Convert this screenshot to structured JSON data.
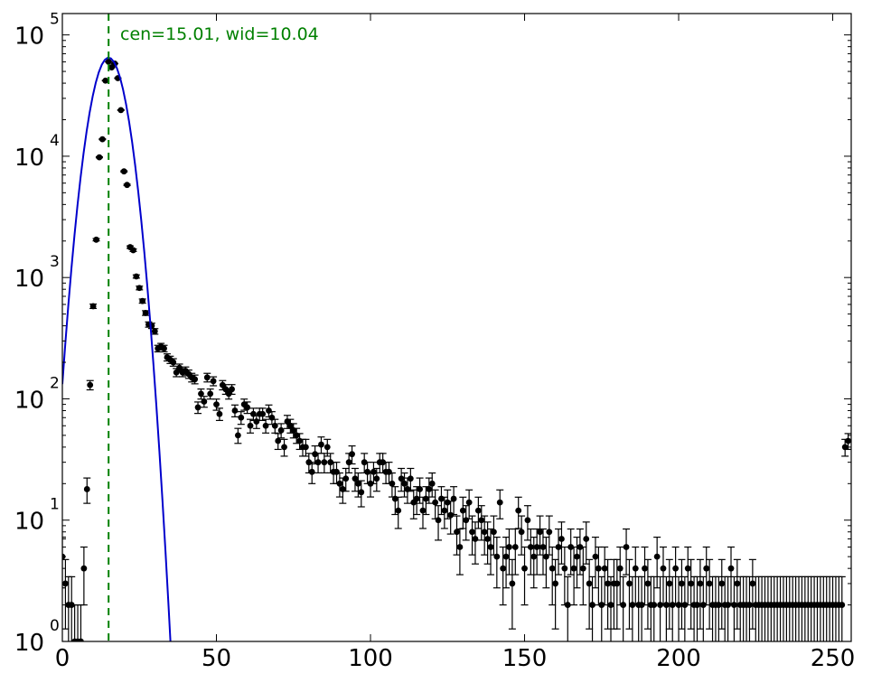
{
  "chart_data": {
    "type": "scatter",
    "title": "",
    "xlabel": "",
    "ylabel": "",
    "xlim": [
      0,
      256
    ],
    "ylim": [
      1,
      150000
    ],
    "yscale": "log",
    "grid": false,
    "x_ticks": [
      0,
      50,
      100,
      150,
      200,
      250
    ],
    "x_tick_labels": [
      "0",
      "50",
      "100",
      "150",
      "200",
      "250"
    ],
    "y_ticks": [
      {
        "value": 1,
        "base": "10",
        "exp": "0"
      },
      {
        "value": 10,
        "base": "10",
        "exp": "1"
      },
      {
        "value": 100,
        "base": "10",
        "exp": "2"
      },
      {
        "value": 1000,
        "base": "10",
        "exp": "3"
      },
      {
        "value": 10000,
        "base": "10",
        "exp": "4"
      },
      {
        "value": 100000,
        "base": "10",
        "exp": "5"
      }
    ],
    "annotation": "cen=15.01, wid=10.04",
    "marker": {
      "x": 15.01,
      "color": "#008000",
      "style": "dashed"
    },
    "colors": {
      "data": "#000000",
      "fit": "#0000cc",
      "marker": "#008000"
    },
    "fit": {
      "center": 15.01,
      "width": 10.04,
      "amplitude": 65000
    },
    "series": [
      {
        "points": [
          [
            0,
            5
          ],
          [
            1,
            3
          ],
          [
            2,
            2
          ],
          [
            3,
            2
          ],
          [
            4,
            1
          ],
          [
            5,
            1
          ],
          [
            6,
            1
          ],
          [
            7,
            4
          ],
          [
            8,
            18
          ],
          [
            9,
            130
          ],
          [
            10,
            580
          ],
          [
            11,
            2050
          ],
          [
            12,
            9800
          ],
          [
            13,
            13800
          ],
          [
            14,
            42000
          ],
          [
            15,
            60000
          ],
          [
            16,
            54000
          ],
          [
            17,
            58000
          ],
          [
            18,
            44000
          ],
          [
            19,
            24000
          ],
          [
            20,
            7500
          ],
          [
            21,
            5800
          ],
          [
            22,
            1780
          ],
          [
            23,
            1680
          ],
          [
            24,
            1020
          ],
          [
            25,
            820
          ],
          [
            26,
            640
          ],
          [
            27,
            510
          ],
          [
            28,
            410
          ],
          [
            29,
            400
          ],
          [
            30,
            360
          ],
          [
            31,
            260
          ],
          [
            32,
            270
          ],
          [
            33,
            260
          ],
          [
            34,
            220
          ],
          [
            35,
            210
          ],
          [
            36,
            200
          ],
          [
            37,
            165
          ],
          [
            38,
            180
          ],
          [
            39,
            165
          ],
          [
            40,
            170
          ],
          [
            41,
            160
          ],
          [
            42,
            150
          ],
          [
            43,
            145
          ],
          [
            44,
            85
          ],
          [
            45,
            110
          ],
          [
            46,
            95
          ],
          [
            47,
            150
          ],
          [
            48,
            110
          ],
          [
            49,
            140
          ],
          [
            50,
            90
          ],
          [
            51,
            75
          ],
          [
            52,
            130
          ],
          [
            53,
            120
          ],
          [
            54,
            110
          ],
          [
            55,
            120
          ],
          [
            56,
            80
          ],
          [
            57,
            50
          ],
          [
            58,
            70
          ],
          [
            59,
            90
          ],
          [
            60,
            85
          ],
          [
            61,
            60
          ],
          [
            62,
            75
          ],
          [
            63,
            65
          ],
          [
            64,
            75
          ],
          [
            65,
            75
          ],
          [
            66,
            60
          ],
          [
            67,
            80
          ],
          [
            68,
            70
          ],
          [
            69,
            60
          ],
          [
            70,
            45
          ],
          [
            71,
            55
          ],
          [
            72,
            40
          ],
          [
            73,
            65
          ],
          [
            74,
            60
          ],
          [
            75,
            55
          ],
          [
            76,
            50
          ],
          [
            77,
            45
          ],
          [
            78,
            40
          ],
          [
            79,
            40
          ],
          [
            80,
            30
          ],
          [
            81,
            25
          ],
          [
            82,
            35
          ],
          [
            83,
            30
          ],
          [
            84,
            42
          ],
          [
            85,
            30
          ],
          [
            86,
            40
          ],
          [
            87,
            30
          ],
          [
            88,
            25
          ],
          [
            89,
            25
          ],
          [
            90,
            20
          ],
          [
            91,
            18
          ],
          [
            92,
            22
          ],
          [
            93,
            30
          ],
          [
            94,
            35
          ],
          [
            95,
            22
          ],
          [
            96,
            20
          ],
          [
            97,
            17
          ],
          [
            98,
            30
          ],
          [
            99,
            25
          ],
          [
            100,
            20
          ],
          [
            101,
            25
          ],
          [
            102,
            22
          ],
          [
            103,
            30
          ],
          [
            104,
            30
          ],
          [
            105,
            25
          ],
          [
            106,
            25
          ],
          [
            107,
            20
          ],
          [
            108,
            15
          ],
          [
            109,
            12
          ],
          [
            110,
            22
          ],
          [
            111,
            20
          ],
          [
            112,
            18
          ],
          [
            113,
            22
          ],
          [
            114,
            14
          ],
          [
            115,
            15
          ],
          [
            116,
            18
          ],
          [
            117,
            12
          ],
          [
            118,
            15
          ],
          [
            119,
            18
          ],
          [
            120,
            20
          ],
          [
            121,
            14
          ],
          [
            122,
            10
          ],
          [
            123,
            15
          ],
          [
            124,
            12
          ],
          [
            125,
            14
          ],
          [
            126,
            11
          ],
          [
            127,
            15
          ],
          [
            128,
            8
          ],
          [
            129,
            6
          ],
          [
            130,
            12
          ],
          [
            131,
            10
          ],
          [
            132,
            14
          ],
          [
            133,
            8
          ],
          [
            134,
            7
          ],
          [
            135,
            12
          ],
          [
            136,
            10
          ],
          [
            137,
            8
          ],
          [
            138,
            7
          ],
          [
            139,
            6
          ],
          [
            140,
            8
          ],
          [
            141,
            5
          ],
          [
            142,
            14
          ],
          [
            143,
            4
          ],
          [
            144,
            5
          ],
          [
            145,
            6
          ],
          [
            146,
            3
          ],
          [
            147,
            6
          ],
          [
            148,
            12
          ],
          [
            149,
            8
          ],
          [
            150,
            4
          ],
          [
            151,
            10
          ],
          [
            152,
            6
          ],
          [
            153,
            5
          ],
          [
            154,
            6
          ],
          [
            155,
            8
          ],
          [
            156,
            6
          ],
          [
            157,
            5
          ],
          [
            158,
            8
          ],
          [
            159,
            4
          ],
          [
            160,
            3
          ],
          [
            161,
            6
          ],
          [
            162,
            7
          ],
          [
            163,
            4
          ],
          [
            164,
            2
          ],
          [
            165,
            6
          ],
          [
            166,
            4
          ],
          [
            167,
            5
          ],
          [
            168,
            6
          ],
          [
            169,
            4
          ],
          [
            170,
            7
          ],
          [
            171,
            3
          ],
          [
            172,
            2
          ],
          [
            173,
            5
          ],
          [
            174,
            4
          ],
          [
            175,
            2
          ],
          [
            176,
            4
          ],
          [
            177,
            3
          ],
          [
            178,
            2
          ],
          [
            179,
            3
          ],
          [
            180,
            3
          ],
          [
            181,
            4
          ],
          [
            182,
            2
          ],
          [
            183,
            6
          ],
          [
            184,
            3
          ],
          [
            185,
            2
          ],
          [
            186,
            4
          ],
          [
            187,
            2
          ],
          [
            188,
            2
          ],
          [
            189,
            4
          ],
          [
            190,
            3
          ],
          [
            191,
            2
          ],
          [
            192,
            2
          ],
          [
            193,
            5
          ],
          [
            194,
            2
          ],
          [
            195,
            4
          ],
          [
            196,
            2
          ],
          [
            197,
            3
          ],
          [
            198,
            2
          ],
          [
            199,
            4
          ],
          [
            200,
            2
          ],
          [
            201,
            3
          ],
          [
            202,
            2
          ],
          [
            203,
            4
          ],
          [
            204,
            3
          ],
          [
            205,
            2
          ],
          [
            206,
            2
          ],
          [
            207,
            3
          ],
          [
            208,
            2
          ],
          [
            209,
            4
          ],
          [
            210,
            3
          ],
          [
            211,
            2
          ],
          [
            212,
            2
          ],
          [
            213,
            2
          ],
          [
            214,
            3
          ],
          [
            215,
            2
          ],
          [
            216,
            2
          ],
          [
            217,
            4
          ],
          [
            218,
            2
          ],
          [
            219,
            3
          ],
          [
            220,
            2
          ],
          [
            221,
            2
          ],
          [
            222,
            2
          ],
          [
            223,
            2
          ],
          [
            224,
            3
          ],
          [
            225,
            2
          ],
          [
            226,
            2
          ],
          [
            227,
            2
          ],
          [
            228,
            2
          ],
          [
            229,
            2
          ],
          [
            230,
            2
          ],
          [
            231,
            2
          ],
          [
            232,
            2
          ],
          [
            233,
            2
          ],
          [
            234,
            2
          ],
          [
            235,
            2
          ],
          [
            236,
            2
          ],
          [
            237,
            2
          ],
          [
            238,
            2
          ],
          [
            239,
            2
          ],
          [
            240,
            2
          ],
          [
            241,
            2
          ],
          [
            242,
            2
          ],
          [
            243,
            2
          ],
          [
            244,
            2
          ],
          [
            245,
            2
          ],
          [
            246,
            2
          ],
          [
            247,
            2
          ],
          [
            248,
            2
          ],
          [
            249,
            2
          ],
          [
            250,
            2
          ],
          [
            251,
            2
          ],
          [
            252,
            2
          ],
          [
            253,
            2
          ],
          [
            254,
            40
          ],
          [
            255,
            45
          ]
        ]
      }
    ]
  }
}
